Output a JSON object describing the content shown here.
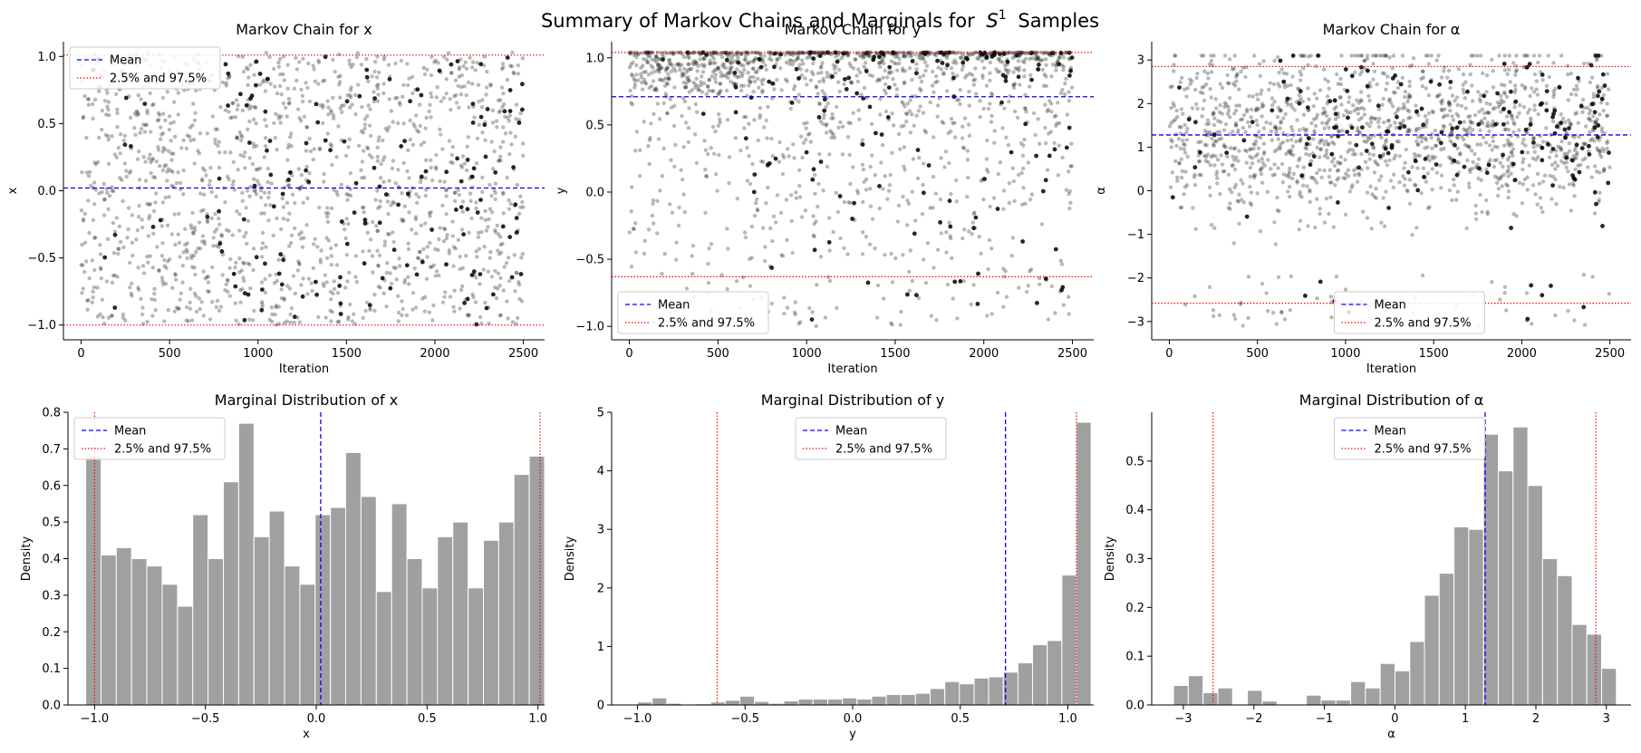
{
  "suptitle": "Summary of Markov Chains and Marginals for",
  "suptitle_math": "S",
  "suptitle_sup": "1",
  "suptitle_tail": "Samples",
  "colors": {
    "mean": "#0000ff",
    "quantile": "#ff0000",
    "bars": "#a0a0a0",
    "points": "#000000"
  },
  "chart_data": [
    {
      "type": "scatter",
      "title": "Markov Chain for x",
      "xlabel": "Iteration",
      "ylabel": "x",
      "xlim": [
        -100,
        2620
      ],
      "ylim": [
        -1.11,
        1.11
      ],
      "xticks": [
        0,
        500,
        1000,
        1500,
        2000,
        2500
      ],
      "yticks": [
        -1.0,
        -0.5,
        0.0,
        0.5,
        1.0
      ],
      "mean": 0.02,
      "q025": -1.0,
      "q975": 1.01,
      "legend_position": "upper left",
      "legend": [
        "Mean",
        "2.5% and 97.5%"
      ],
      "n_points": 2500,
      "distribution": "uniform",
      "range": [
        -1.0,
        1.03
      ]
    },
    {
      "type": "scatter",
      "title": "Markov Chain for y",
      "xlabel": "Iteration",
      "ylabel": "y",
      "xlim": [
        -100,
        2620
      ],
      "ylim": [
        -1.1,
        1.12
      ],
      "xticks": [
        0,
        500,
        1000,
        1500,
        2000,
        2500
      ],
      "yticks": [
        -1.0,
        -0.5,
        0.0,
        0.5,
        1.0
      ],
      "mean": 0.71,
      "q025": -0.63,
      "q975": 1.04,
      "legend_position": "lower left",
      "legend": [
        "Mean",
        "2.5% and 97.5%"
      ],
      "n_points": 2500,
      "distribution": "skewed-high",
      "range": [
        -1.0,
        1.04
      ]
    },
    {
      "type": "scatter",
      "title": "Markov Chain for α",
      "xlabel": "Iteration",
      "ylabel": "α",
      "xlim": [
        -100,
        2620
      ],
      "ylim": [
        -3.42,
        3.42
      ],
      "xticks": [
        0,
        500,
        1000,
        1500,
        2000,
        2500
      ],
      "yticks": [
        -3,
        -2,
        -1,
        0,
        1,
        2,
        3
      ],
      "mean": 1.28,
      "q025": -2.58,
      "q975": 2.85,
      "legend_position": "lower center",
      "legend": [
        "Mean",
        "2.5% and 97.5%"
      ],
      "n_points": 2500,
      "distribution": "peaked",
      "range": [
        -3.1,
        3.1
      ]
    },
    {
      "type": "bar",
      "title": "Marginal Distribution of x",
      "xlabel": "x",
      "ylabel": "Density",
      "xlim": [
        -1.12,
        1.03
      ],
      "ylim": [
        0,
        0.8
      ],
      "xticks": [
        -1.0,
        -0.5,
        0.0,
        0.5,
        1.0
      ],
      "yticks": [
        0.0,
        0.1,
        0.2,
        0.3,
        0.4,
        0.5,
        0.6,
        0.7,
        0.8
      ],
      "bin_start": -1.04,
      "bin_width": 0.069,
      "values": [
        0.68,
        0.41,
        0.43,
        0.4,
        0.38,
        0.33,
        0.27,
        0.52,
        0.4,
        0.61,
        0.77,
        0.46,
        0.53,
        0.38,
        0.33,
        0.52,
        0.54,
        0.69,
        0.57,
        0.31,
        0.55,
        0.4,
        0.32,
        0.46,
        0.5,
        0.32,
        0.45,
        0.5,
        0.63,
        0.68
      ],
      "mean": 0.02,
      "q025": -1.0,
      "q975": 1.01,
      "legend_position": "upper left",
      "legend": [
        "Mean",
        "2.5% and 97.5%"
      ]
    },
    {
      "type": "bar",
      "title": "Marginal Distribution of y",
      "xlabel": "y",
      "ylabel": "Density",
      "xlim": [
        -1.12,
        1.12
      ],
      "ylim": [
        0,
        5.0
      ],
      "xticks": [
        -1.0,
        -0.5,
        0.0,
        0.5,
        1.0
      ],
      "yticks": [
        0,
        1,
        2,
        3,
        4,
        5
      ],
      "bin_start": -1.0,
      "bin_width": 0.068,
      "values": [
        0.05,
        0.12,
        0.03,
        0.0,
        0.02,
        0.05,
        0.08,
        0.15,
        0.06,
        0.03,
        0.07,
        0.1,
        0.1,
        0.1,
        0.12,
        0.1,
        0.15,
        0.18,
        0.18,
        0.2,
        0.28,
        0.4,
        0.36,
        0.46,
        0.48,
        0.56,
        0.72,
        1.03,
        1.1,
        2.22,
        4.83
      ],
      "mean": 0.71,
      "q025": -0.63,
      "q975": 1.04,
      "legend_position": "upper center",
      "legend": [
        "Mean",
        "2.5% and 97.5%"
      ]
    },
    {
      "type": "bar",
      "title": "Marginal Distribution of α",
      "xlabel": "α",
      "ylabel": "Density",
      "xlim": [
        -3.45,
        3.35
      ],
      "ylim": [
        0,
        0.6
      ],
      "xticks": [
        -3,
        -2,
        -1,
        0,
        1,
        2,
        3
      ],
      "yticks": [
        0.0,
        0.1,
        0.2,
        0.3,
        0.4,
        0.5
      ],
      "bin_start": -3.14,
      "bin_width": 0.2094,
      "values": [
        0.04,
        0.06,
        0.025,
        0.035,
        0.0,
        0.03,
        0.008,
        0.0,
        0.0,
        0.02,
        0.01,
        0.01,
        0.048,
        0.035,
        0.085,
        0.07,
        0.13,
        0.225,
        0.27,
        0.365,
        0.36,
        0.555,
        0.48,
        0.57,
        0.45,
        0.3,
        0.265,
        0.165,
        0.145,
        0.075
      ],
      "mean": 1.28,
      "q025": -2.58,
      "q975": 2.85,
      "legend_position": "upper center",
      "legend": [
        "Mean",
        "2.5% and 97.5%"
      ]
    }
  ]
}
